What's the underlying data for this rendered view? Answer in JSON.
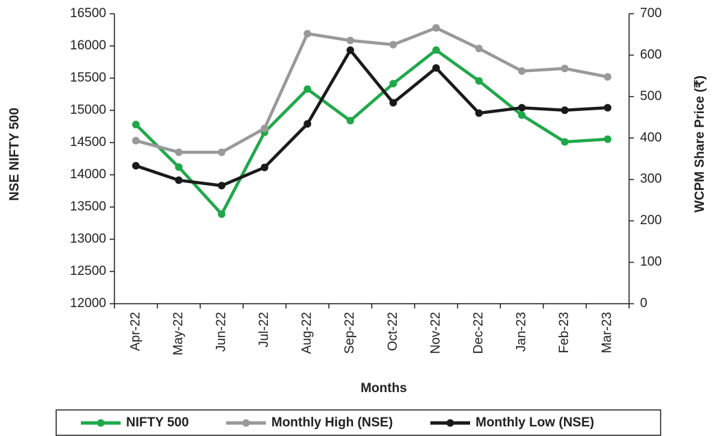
{
  "chart_data": {
    "type": "line",
    "x_label": "Months",
    "y_label": "NSE NIFTY 500",
    "y2_label": "WCPM Share Price (₹)",
    "categories": [
      "Apr-22",
      "May-22",
      "Jun-22",
      "Jul-22",
      "Aug-22",
      "Sep-22",
      "Oct-22",
      "Nov-22",
      "Dec-22",
      "Jan-23",
      "Feb-23",
      "Mar-23"
    ],
    "series": [
      {
        "name": "NIFTY 500",
        "color": "#1fa84a",
        "values": [
          14780,
          14120,
          13390,
          14660,
          15330,
          14840,
          15415,
          15936,
          15457,
          14926,
          14511,
          14553
        ]
      },
      {
        "name": "Monthly High (NSE)",
        "color": "#999999",
        "values": [
          14530,
          14350,
          14350,
          14720,
          16190,
          16085,
          16020,
          16280,
          15960,
          15610,
          15650,
          15520
        ]
      },
      {
        "name": "Monthly Low (NSE)",
        "color": "#1a1a1a",
        "axis": "y2",
        "values": [
          333,
          298,
          285,
          329,
          434,
          612,
          485,
          569,
          460,
          473,
          467,
          473
        ]
      }
    ],
    "ylim": [
      12000,
      16500
    ],
    "yticks": [
      12000,
      12500,
      13000,
      13500,
      14000,
      14500,
      15000,
      15500,
      16000,
      16500
    ],
    "y2lim": [
      0,
      700
    ],
    "y2ticks": [
      0,
      100,
      200,
      300,
      400,
      500,
      600,
      700
    ],
    "legend": "bottom"
  }
}
